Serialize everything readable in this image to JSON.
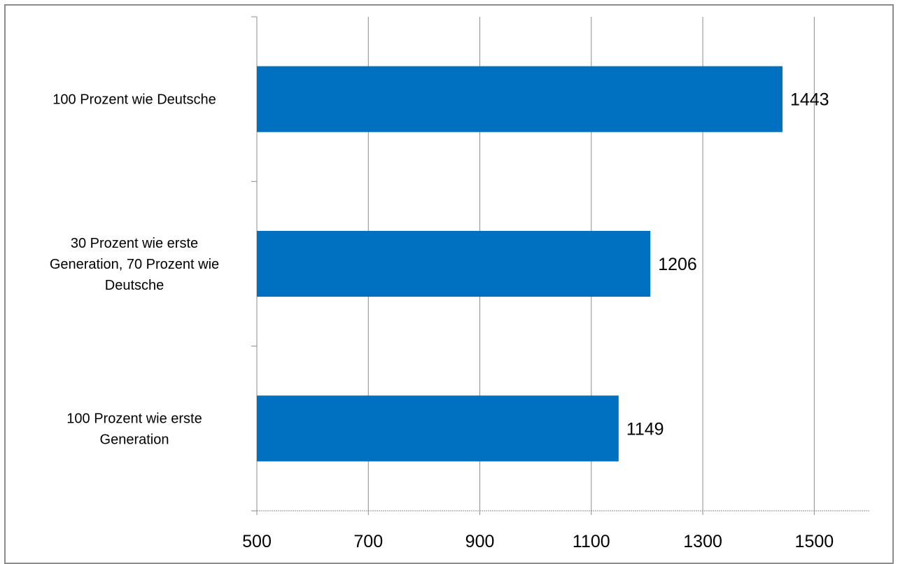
{
  "chart_data": {
    "type": "bar",
    "orientation": "horizontal",
    "categories": [
      "100 Prozent wie Deutsche",
      "30 Prozent wie erste Generation, 70 Prozent wie Deutsche",
      "100 Prozent wie erste Generation"
    ],
    "category_label_lines": [
      [
        "100 Prozent wie Deutsche"
      ],
      [
        "30 Prozent wie erste",
        "Generation, 70 Prozent wie",
        "Deutsche"
      ],
      [
        "100 Prozent wie erste",
        "Generation"
      ]
    ],
    "values": [
      1443,
      1206,
      1149
    ],
    "data_labels": [
      "1443",
      "1206",
      "1149"
    ],
    "xticks": [
      500,
      700,
      900,
      1100,
      1300,
      1500
    ],
    "xtick_labels": [
      "500",
      "700",
      "900",
      "1100",
      "1300",
      "1500"
    ],
    "xlim": [
      500,
      1600
    ],
    "bar_color": "#0070C0",
    "grid": true,
    "legend": "none",
    "title": "",
    "xlabel": "",
    "ylabel": ""
  }
}
